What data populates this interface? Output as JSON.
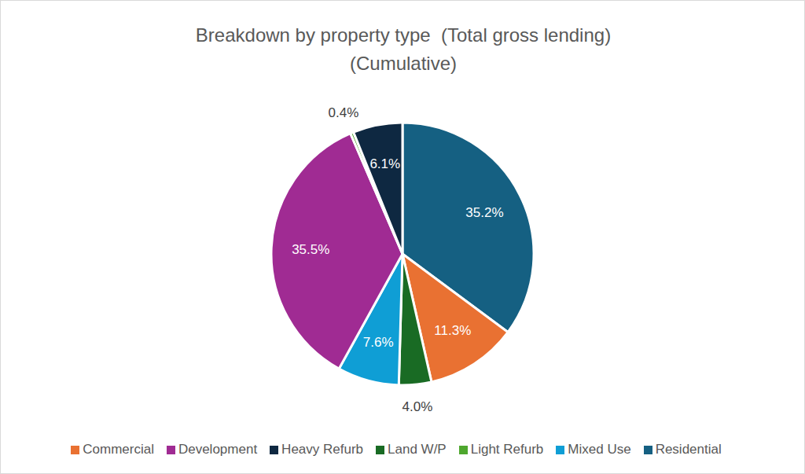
{
  "chart_data": {
    "type": "pie",
    "title": "Breakdown by property type  (Total gross lending)",
    "subtitle": "(Cumulative)",
    "categories": [
      "Residential",
      "Commercial",
      "Land W/P",
      "Mixed Use",
      "Development",
      "Light Refurb",
      "Heavy Refurb"
    ],
    "values": [
      35.2,
      11.3,
      4.0,
      7.6,
      35.5,
      0.4,
      6.1
    ],
    "value_labels": [
      "35.2%",
      "11.3%",
      "4.0%",
      "7.6%",
      "35.5%",
      "0.4%",
      "6.1%"
    ],
    "colors": [
      "#156082",
      "#e97132",
      "#196b24",
      "#0f9ed5",
      "#a02b93",
      "#4ea72e",
      "#0e2841"
    ],
    "data_labels": true,
    "legend": "bottom"
  }
}
